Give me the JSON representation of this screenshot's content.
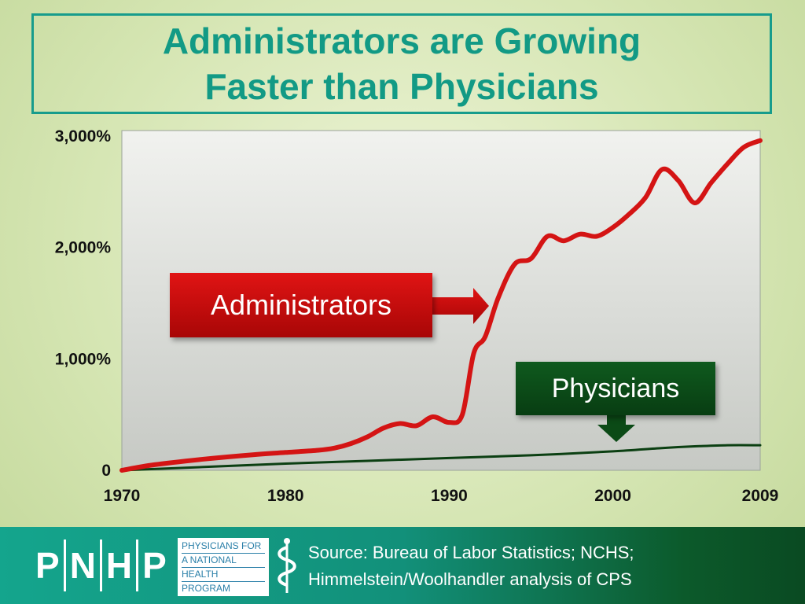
{
  "title": {
    "line1": "Administrators are Growing",
    "line2": "Faster than Physicians"
  },
  "chart_data": {
    "type": "line",
    "ylim": [
      0,
      3000
    ],
    "xlim": [
      1970,
      2009
    ],
    "y_ticks": [
      "0",
      "1,000%",
      "2,000%",
      "3,000%"
    ],
    "y_tick_values": [
      0,
      1000,
      2000,
      3000
    ],
    "x_ticks": [
      "1970",
      "1980",
      "1990",
      "2000",
      "2009"
    ],
    "x_tick_values": [
      1970,
      1980,
      1990,
      2000,
      2009
    ],
    "series": [
      {
        "name": "Administrators",
        "color": "#d41414",
        "x": [
          1970,
          1972,
          1975,
          1978,
          1980,
          1982,
          1983,
          1984,
          1985,
          1986,
          1987,
          1988,
          1989,
          1990,
          1990.8,
          1991.5,
          1992.2,
          1993,
          1994,
          1995,
          1996,
          1997,
          1998,
          1999,
          2000,
          2001,
          2002,
          2003,
          2004,
          2005,
          2006,
          2007,
          2008,
          2009
        ],
        "values": [
          0,
          50,
          100,
          140,
          160,
          180,
          200,
          240,
          300,
          380,
          420,
          400,
          480,
          430,
          500,
          1050,
          1200,
          1550,
          1850,
          1900,
          2100,
          2060,
          2120,
          2100,
          2180,
          2300,
          2450,
          2700,
          2600,
          2400,
          2580,
          2750,
          2900,
          2960
        ]
      },
      {
        "name": "Physicians",
        "color": "#0b3f12",
        "x": [
          1970,
          1975,
          1980,
          1985,
          1990,
          1995,
          2000,
          2003,
          2005,
          2007,
          2009
        ],
        "values": [
          0,
          30,
          60,
          85,
          110,
          135,
          170,
          200,
          215,
          225,
          225
        ]
      }
    ],
    "annotations": [
      "Administrators",
      "Physicians"
    ]
  },
  "labels": {
    "administrators": "Administrators",
    "physicians": "Physicians"
  },
  "footer": {
    "logo_letters": [
      "P",
      "N",
      "H",
      "P"
    ],
    "logo_text": [
      "PHYSICIANS FOR",
      "A NATIONAL",
      "HEALTH",
      "PROGRAM"
    ],
    "source_line1": "Source: Bureau of Labor Statistics; NCHS;",
    "source_line2": "Himmelstein/Woolhandler analysis of CPS"
  }
}
